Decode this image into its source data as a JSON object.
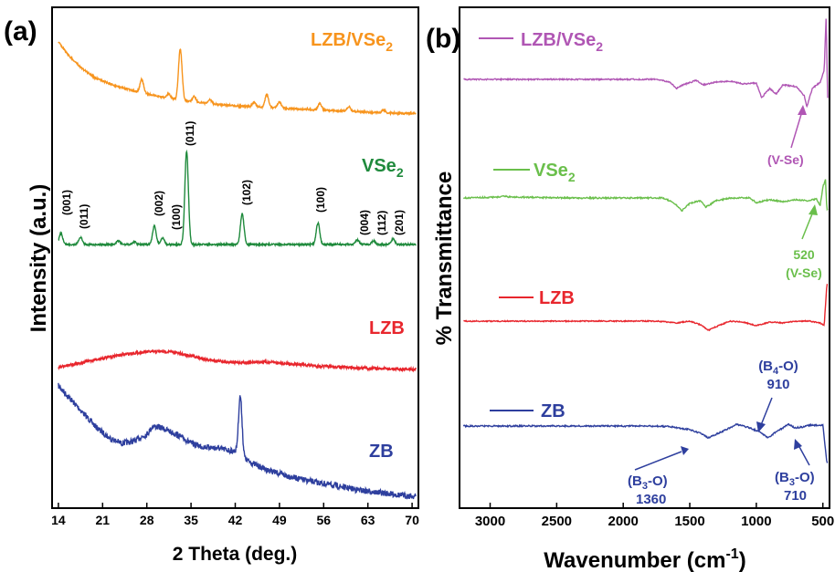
{
  "chart_data": [
    {
      "panel": "(a)",
      "type": "line",
      "xlabel": "2 Theta (deg.)",
      "ylabel": "Intensity (a.u.)",
      "xlim": [
        13,
        71
      ],
      "xticks": [
        14,
        21,
        28,
        35,
        42,
        49,
        56,
        63,
        70
      ],
      "series": [
        {
          "name": "ZB",
          "color": "#2e3f9e",
          "points": [
            [
              14,
              100
            ],
            [
              16,
              88
            ],
            [
              18,
              76
            ],
            [
              20,
              64
            ],
            [
              22,
              55
            ],
            [
              24,
              50
            ],
            [
              26,
              52
            ],
            [
              28,
              58
            ],
            [
              29,
              65
            ],
            [
              30,
              64
            ],
            [
              31,
              62
            ],
            [
              33,
              57
            ],
            [
              35,
              50
            ],
            [
              37,
              47
            ],
            [
              39,
              46
            ],
            [
              41,
              44
            ],
            [
              42,
              43
            ],
            [
              43,
              38
            ],
            [
              45,
              32
            ],
            [
              47,
              27
            ],
            [
              50,
              22
            ],
            [
              53,
              18
            ],
            [
              56,
              15
            ],
            [
              59,
              12
            ],
            [
              62,
              9
            ],
            [
              65,
              7
            ],
            [
              68,
              5
            ],
            [
              70,
              4
            ]
          ],
          "peaks": [
            [
              42.8,
              52
            ]
          ]
        },
        {
          "name": "LZB",
          "color": "#e8262d",
          "points": [
            [
              14,
              4
            ],
            [
              17,
              12
            ],
            [
              20,
              20
            ],
            [
              23,
              27
            ],
            [
              26,
              33
            ],
            [
              28,
              35
            ],
            [
              30,
              36
            ],
            [
              32,
              35
            ],
            [
              34,
              30
            ],
            [
              36,
              24
            ],
            [
              38,
              19
            ],
            [
              40,
              16
            ],
            [
              42,
              14
            ],
            [
              44,
              14
            ],
            [
              46,
              15
            ],
            [
              48,
              14
            ],
            [
              50,
              12
            ],
            [
              52,
              10
            ],
            [
              55,
              7
            ],
            [
              58,
              5
            ],
            [
              62,
              3
            ],
            [
              66,
              1
            ],
            [
              70,
              0
            ]
          ]
        },
        {
          "name": "VSe2",
          "color": "#1f8a3c",
          "points": [
            [
              14,
              0
            ],
            [
              70,
              0
            ]
          ],
          "peaks": [
            [
              14.4,
              12
            ],
            [
              17.5,
              8
            ],
            [
              23.5,
              4
            ],
            [
              26,
              3
            ],
            [
              29.2,
              20
            ],
            [
              30.5,
              7
            ],
            [
              34.3,
              100
            ],
            [
              43.1,
              33
            ],
            [
              55.1,
              23
            ],
            [
              61.3,
              5
            ],
            [
              63.9,
              4
            ],
            [
              67,
              6
            ]
          ]
        },
        {
          "name": "LZB/VSe2",
          "color": "#f7941d",
          "points": [
            [
              14,
              100
            ],
            [
              16,
              78
            ],
            [
              18,
              62
            ],
            [
              20,
              50
            ],
            [
              23,
              40
            ],
            [
              26,
              33
            ],
            [
              29,
              27
            ],
            [
              32,
              22
            ],
            [
              36,
              17
            ],
            [
              40,
              14
            ],
            [
              45,
              11
            ],
            [
              50,
              9
            ],
            [
              55,
              7
            ],
            [
              60,
              5
            ],
            [
              65,
              3
            ],
            [
              70,
              2
            ]
          ],
          "peaks": [
            [
              27.2,
              18
            ],
            [
              31.5,
              6
            ],
            [
              33.3,
              70
            ],
            [
              35.5,
              8
            ],
            [
              38,
              5
            ],
            [
              45,
              6
            ],
            [
              47,
              18
            ],
            [
              49,
              8
            ],
            [
              55.4,
              9
            ],
            [
              60,
              6
            ],
            [
              65.5,
              4
            ]
          ]
        }
      ],
      "labels": {
        "zb": "ZB",
        "lzb": "LZB",
        "vse2_base": "VSe",
        "vse2_sub": "2",
        "lzb_vse2_base": "LZB/VSe",
        "lzb_vse2_sub": "2"
      },
      "peak_labels": [
        "(001)",
        "(011)",
        "(002)",
        "(100)",
        "(011)",
        "(102)",
        "(100)",
        "(004)",
        "(112)",
        "(201)"
      ]
    },
    {
      "panel": "(b)",
      "type": "line",
      "xlabel_base": "Wavenumber (cm",
      "xlabel_sup": "-1",
      "xlabel_end": ")",
      "ylabel": "% Transmittance",
      "x_reversed": true,
      "xlim": [
        3230,
        450
      ],
      "xticks": [
        3000,
        2500,
        2000,
        1500,
        1000,
        500
      ],
      "series": [
        {
          "name": "ZB",
          "color": "#2e3f9e",
          "points": [
            [
              3200,
              0
            ],
            [
              1800,
              0
            ],
            [
              1650,
              -0.5
            ],
            [
              1500,
              -4
            ],
            [
              1420,
              -8
            ],
            [
              1360,
              -13
            ],
            [
              1300,
              -9
            ],
            [
              1200,
              -2
            ],
            [
              1150,
              2
            ],
            [
              1050,
              -2
            ],
            [
              980,
              -6
            ],
            [
              910,
              -13
            ],
            [
              850,
              -6
            ],
            [
              800,
              -2
            ],
            [
              760,
              2
            ],
            [
              710,
              -2
            ],
            [
              650,
              -1
            ],
            [
              600,
              1
            ],
            [
              500,
              1
            ],
            [
              470,
              -40
            ]
          ]
        },
        {
          "name": "LZB",
          "color": "#e8262d",
          "points": [
            [
              3200,
              0
            ],
            [
              1750,
              0
            ],
            [
              1600,
              -2
            ],
            [
              1500,
              0
            ],
            [
              1420,
              -4
            ],
            [
              1360,
              -10
            ],
            [
              1300,
              -6
            ],
            [
              1200,
              0
            ],
            [
              1100,
              -1
            ],
            [
              1000,
              -5
            ],
            [
              900,
              -1
            ],
            [
              800,
              -2
            ],
            [
              700,
              0
            ],
            [
              600,
              0
            ],
            [
              520,
              -2
            ],
            [
              490,
              -5
            ],
            [
              470,
              40
            ]
          ]
        },
        {
          "name": "VSe2",
          "color": "#6abf4b",
          "points": [
            [
              3200,
              0
            ],
            [
              2950,
              1
            ],
            [
              2900,
              2
            ],
            [
              2850,
              1
            ],
            [
              2400,
              0
            ],
            [
              1800,
              0
            ],
            [
              1700,
              0
            ],
            [
              1650,
              -3
            ],
            [
              1600,
              -8
            ],
            [
              1560,
              -14
            ],
            [
              1500,
              -6
            ],
            [
              1420,
              -3
            ],
            [
              1380,
              -10
            ],
            [
              1300,
              -3
            ],
            [
              1200,
              0
            ],
            [
              1050,
              0
            ],
            [
              1000,
              -5
            ],
            [
              900,
              -2
            ],
            [
              800,
              -4
            ],
            [
              700,
              -2
            ],
            [
              600,
              -3
            ],
            [
              550,
              -1
            ],
            [
              520,
              -8
            ],
            [
              500,
              12
            ],
            [
              480,
              20
            ],
            [
              470,
              -12
            ]
          ]
        },
        {
          "name": "LZB/VSe2",
          "color": "#b056b4",
          "points": [
            [
              3200,
              0
            ],
            [
              1750,
              0
            ],
            [
              1650,
              -3
            ],
            [
              1600,
              -10
            ],
            [
              1550,
              -6
            ],
            [
              1450,
              -1
            ],
            [
              1400,
              -6
            ],
            [
              1300,
              -3
            ],
            [
              1200,
              -2
            ],
            [
              1100,
              -5
            ],
            [
              1000,
              -4
            ],
            [
              960,
              -20
            ],
            [
              900,
              -10
            ],
            [
              850,
              -16
            ],
            [
              800,
              -6
            ],
            [
              700,
              -8
            ],
            [
              640,
              -18
            ],
            [
              620,
              -30
            ],
            [
              580,
              -10
            ],
            [
              520,
              -3
            ],
            [
              490,
              10
            ],
            [
              475,
              70
            ],
            [
              465,
              -20
            ]
          ]
        }
      ],
      "labels": {
        "zb": "ZB",
        "lzb": "LZB",
        "vse2_base": "VSe",
        "vse2_sub": "2",
        "lzb_vse2_base": "LZB/VSe",
        "lzb_vse2_sub": "2"
      },
      "annotations": {
        "vse_lzbvse2": "(V-Se)",
        "vse_num": "520",
        "vse_vse2": "(V-Se)",
        "b4o_base": "(B",
        "b4o_sub": "4",
        "b4o_end": "-O)",
        "b4o_num": "910",
        "b3o_1360_base": "(B",
        "b3o_1360_sub": "3",
        "b3o_1360_end": "-O)",
        "b3o_1360_num": "1360",
        "b3o_710_base": "(B",
        "b3o_710_sub": "3",
        "b3o_710_end": "-O)",
        "b3o_710_num": "710"
      }
    }
  ]
}
